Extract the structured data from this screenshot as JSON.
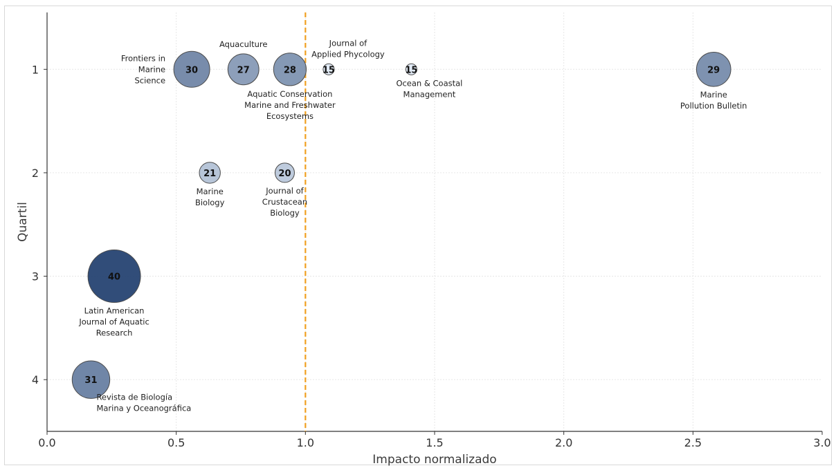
{
  "chart_data": {
    "type": "scatter",
    "title": "",
    "xlabel": "Impacto normalizado",
    "ylabel": "Quartil",
    "xlim": [
      0.0,
      3.0
    ],
    "ylim": [
      4.5,
      0.45
    ],
    "y_inverted": true,
    "grid": true,
    "x_ticks": [
      "0.0",
      "0.5",
      "1.0",
      "1.5",
      "2.0",
      "2.5",
      "3.0"
    ],
    "y_ticks": [
      "1",
      "2",
      "3",
      "4"
    ],
    "reference_line": {
      "x": 1.0,
      "style": "dashed",
      "color": "#f0a020"
    },
    "color_scale": {
      "low": "#dfe9f5",
      "high": "#1f3e6e"
    },
    "points": [
      {
        "label": "Frontiers in Marine Science",
        "label_lines": [
          "Frontiers in",
          "Marine",
          "Science"
        ],
        "x": 0.56,
        "y": 1,
        "value": 30,
        "label_pos": "left"
      },
      {
        "label": "Aquaculture",
        "label_lines": [
          "Aquaculture"
        ],
        "x": 0.76,
        "y": 1,
        "value": 27,
        "label_pos": "above"
      },
      {
        "label": "Aquatic Conservation Marine and Freshwater Ecosystems",
        "label_lines": [
          "Aquatic Conservation",
          "Marine and Freshwater",
          "Ecosystems"
        ],
        "x": 0.94,
        "y": 1,
        "value": 28,
        "label_pos": "below"
      },
      {
        "label": "Journal of Applied Phycology",
        "label_lines": [
          "Journal of",
          "Applied Phycology"
        ],
        "x": 1.09,
        "y": 1,
        "value": 15,
        "label_pos": "above"
      },
      {
        "label": "Ocean & Coastal Management",
        "label_lines": [
          "Ocean & Coastal",
          "Management"
        ],
        "x": 1.41,
        "y": 1,
        "value": 15,
        "label_pos": "below"
      },
      {
        "label": "Marine Pollution Bulletin",
        "label_lines": [
          "Marine",
          "Pollution Bulletin"
        ],
        "x": 2.58,
        "y": 1,
        "value": 29,
        "label_pos": "below"
      },
      {
        "label": "Marine Biology",
        "label_lines": [
          "Marine",
          "Biology"
        ],
        "x": 0.63,
        "y": 2,
        "value": 21,
        "label_pos": "below"
      },
      {
        "label": "Journal of Crustacean Biology",
        "label_lines": [
          "Journal of",
          "Crustacean",
          "Biology"
        ],
        "x": 0.92,
        "y": 2,
        "value": 20,
        "label_pos": "below"
      },
      {
        "label": "Latin American Journal of Aquatic Research",
        "label_lines": [
          "Latin American",
          "Journal of Aquatic",
          "Research"
        ],
        "x": 0.26,
        "y": 3,
        "value": 40,
        "label_pos": "below"
      },
      {
        "label": "Revista de Biología Marina y Oceanográfica",
        "label_lines": [
          "Revista de Biología",
          "Marina y Oceanográfica"
        ],
        "x": 0.17,
        "y": 4,
        "value": 31,
        "label_pos": "below-right"
      }
    ]
  }
}
